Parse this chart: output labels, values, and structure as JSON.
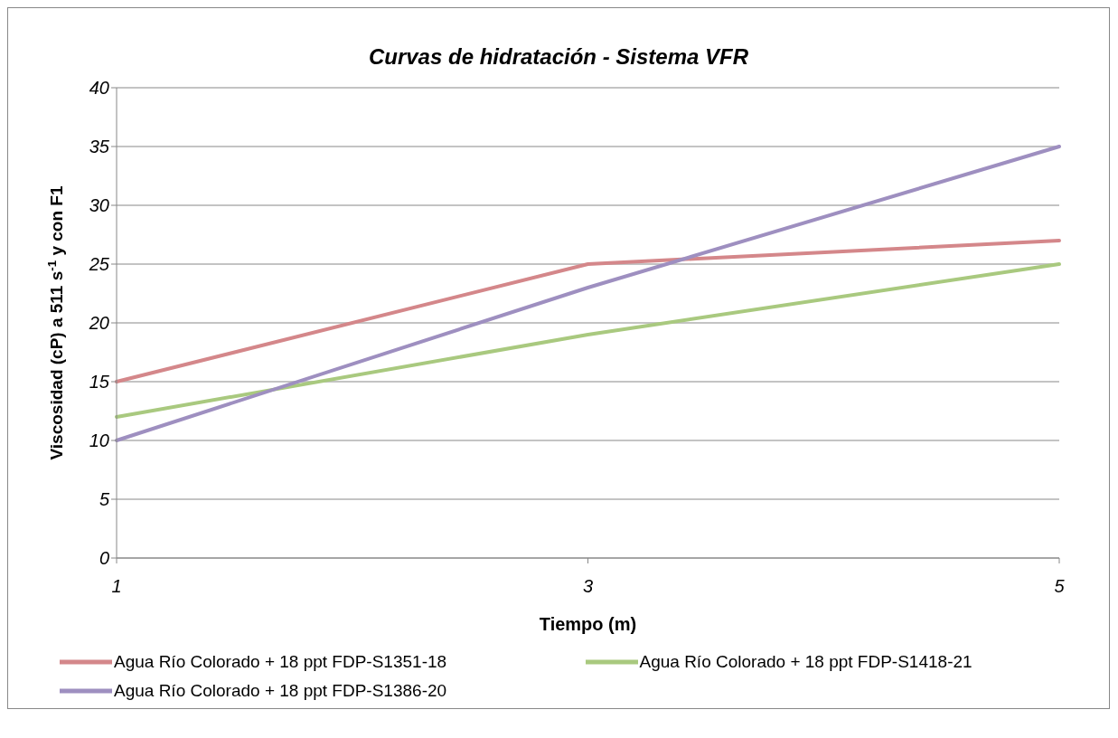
{
  "chart_data": {
    "type": "line",
    "title": "Curvas de hidratación - Sistema VFR",
    "xlabel": "Tiempo (m)",
    "ylabel": "Viscosidad (cP) a 511 s$^{-1}$ y con F1",
    "categories": [
      "1",
      "3",
      "5"
    ],
    "series": [
      {
        "name": "Agua Río Colorado + 18 ppt FDP-S1351-18",
        "color": "#d4878a",
        "values": [
          15,
          25,
          27
        ]
      },
      {
        "name": "Agua Río Colorado + 18 ppt FDP-S1418-21",
        "color": "#a9c97f",
        "values": [
          12,
          19,
          25
        ]
      },
      {
        "name": "Agua Río Colorado + 18 ppt FDP-S1386-20",
        "color": "#9e8fc0",
        "values": [
          10,
          23,
          35
        ]
      }
    ],
    "ylim": [
      0,
      40
    ],
    "yticks": [
      0,
      5,
      10,
      15,
      20,
      25,
      30,
      35,
      40
    ],
    "grid": "y",
    "legend": "bottom",
    "marker": "none",
    "line_style": "solid"
  }
}
